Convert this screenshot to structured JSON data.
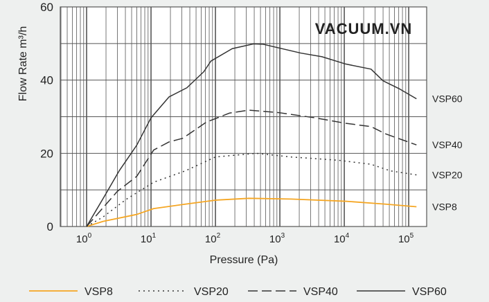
{
  "chart_data": {
    "type": "line",
    "title": "",
    "xlabel": "Pressure (Pa)",
    "ylabel": "Flow Rate  m³/h",
    "x_scale": "log",
    "xlim": [
      0.39,
      190000
    ],
    "ylim": [
      0,
      60
    ],
    "x_ticks": [
      1,
      10,
      100,
      1000,
      10000,
      100000
    ],
    "x_tick_labels": [
      {
        "base": "10",
        "exp": "0"
      },
      {
        "base": "10",
        "exp": "1"
      },
      {
        "base": "10",
        "exp": "2"
      },
      {
        "base": "10",
        "exp": "3"
      },
      {
        "base": "10",
        "exp": "4"
      },
      {
        "base": "10",
        "exp": "5"
      }
    ],
    "y_ticks": [
      0,
      20,
      40,
      60
    ],
    "y_gridlines": [
      0,
      10,
      20,
      30,
      40,
      50,
      60
    ],
    "grid": true,
    "legend_placement": "bottom",
    "watermark": "VACUUM.VN",
    "series": [
      {
        "name": "VSP8",
        "color": "#f5a623",
        "dash": "solid",
        "x": [
          1,
          1.8,
          6,
          11,
          34,
          100,
          330,
          1500,
          10500,
          44000,
          132000
        ],
        "y": [
          0,
          1.4,
          3.3,
          4.9,
          6.1,
          7.2,
          7.7,
          7.5,
          6.9,
          6.1,
          5.4
        ]
      },
      {
        "name": "VSP20",
        "color": "#333333",
        "dash": "dotted",
        "x": [
          1,
          1.8,
          4.1,
          11,
          34,
          100,
          430,
          1500,
          8100,
          26000,
          52000,
          132000
        ],
        "y": [
          0,
          2.6,
          7.4,
          12.1,
          15.2,
          19.0,
          20.0,
          19.0,
          18.1,
          17.0,
          15.2,
          14.1
        ]
      },
      {
        "name": "VSP40",
        "color": "#333333",
        "dash": "dashed",
        "x": [
          1,
          3,
          6,
          11,
          19,
          31,
          72,
          166,
          330,
          980,
          3500,
          10500,
          26000,
          44000,
          132000
        ],
        "y": [
          0,
          9.6,
          13.7,
          20.9,
          23.1,
          24.1,
          28.5,
          31.0,
          31.8,
          31.1,
          29.7,
          28.2,
          27.3,
          25.3,
          22.3
        ]
      },
      {
        "name": "VSP60",
        "color": "#333333",
        "dash": "solid",
        "x": [
          1,
          2,
          3.2,
          6,
          10,
          19,
          36,
          66,
          85,
          182,
          390,
          550,
          2100,
          4500,
          10500,
          26000,
          40000,
          72000,
          132000
        ],
        "y": [
          0,
          9,
          15.2,
          22.2,
          29.7,
          35.4,
          37.9,
          42.3,
          45.2,
          48.6,
          49.9,
          49.8,
          47.4,
          46.4,
          44.4,
          43.0,
          39.8,
          37.6,
          34.9
        ]
      }
    ]
  }
}
